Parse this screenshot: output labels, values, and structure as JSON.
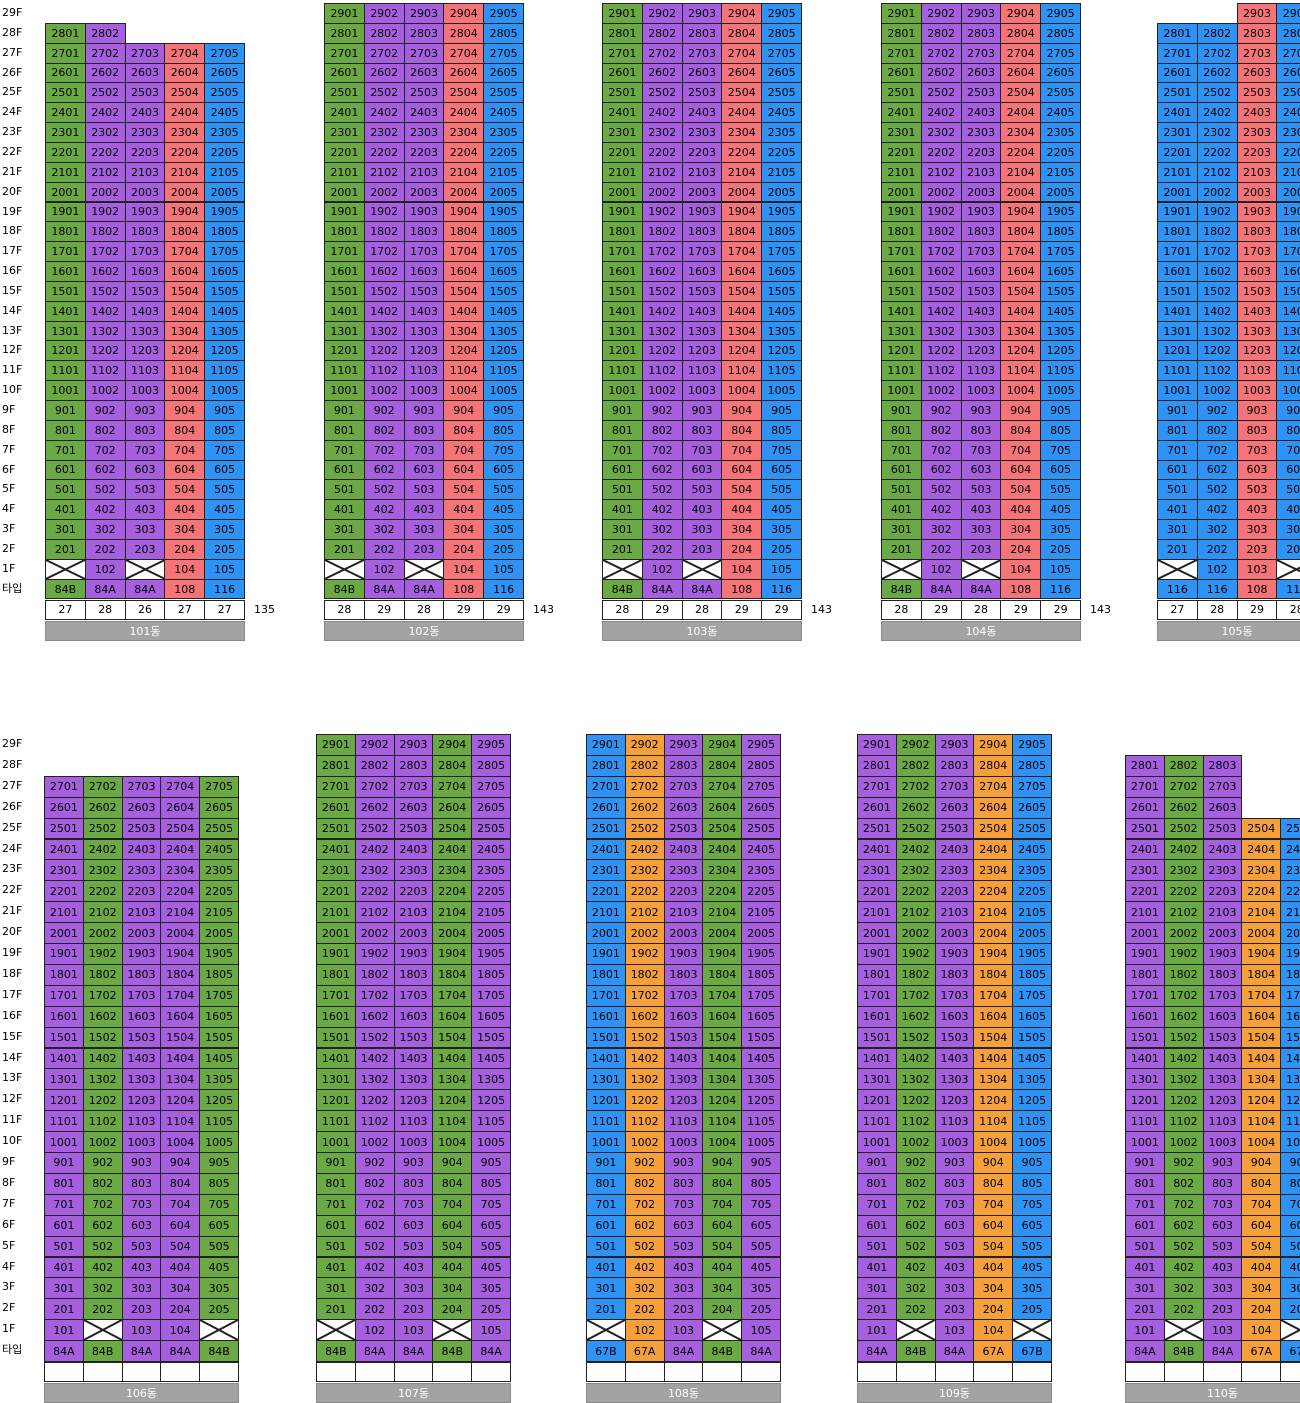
{
  "colors": {
    "G": "#6aa943",
    "P": "#a65fde",
    "R": "#f47478",
    "B": "#2f92f5",
    "O": "#f5a03a",
    "W": "#ffffff"
  },
  "type_label": "타입",
  "rows": [
    {
      "floor_labels": [
        "29F",
        "28F",
        "27F",
        "26F",
        "25F",
        "24F",
        "23F",
        "22F",
        "21F",
        "20F",
        "19F",
        "18F",
        "17F",
        "16F",
        "15F",
        "14F",
        "13F",
        "12F",
        "11F",
        "10F",
        "9F",
        "8F",
        "7F",
        "6F",
        "5F",
        "4F",
        "3F",
        "2F",
        "1F"
      ],
      "buildings": [
        {
          "name": "101동",
          "top_floor": 28,
          "line_colors": [
            "G",
            "P",
            "P",
            "R",
            "B"
          ],
          "line_tops": [
            28,
            28,
            27,
            27,
            27
          ],
          "first_floor": [
            "X",
            "102",
            "X",
            "104",
            "105"
          ],
          "types": [
            "84B",
            "84A",
            "84A",
            "108",
            "116"
          ],
          "counts": [
            "27",
            "28",
            "26",
            "27",
            "27"
          ],
          "total": "135"
        },
        {
          "name": "102동",
          "top_floor": 29,
          "line_colors": [
            "G",
            "P",
            "P",
            "R",
            "B"
          ],
          "line_tops": [
            29,
            29,
            29,
            29,
            29
          ],
          "first_floor": [
            "X",
            "102",
            "X",
            "104",
            "105"
          ],
          "types": [
            "84B",
            "84A",
            "84A",
            "108",
            "116"
          ],
          "counts": [
            "28",
            "29",
            "28",
            "29",
            "29"
          ],
          "total": "143"
        },
        {
          "name": "103동",
          "top_floor": 29,
          "line_colors": [
            "G",
            "P",
            "P",
            "R",
            "B"
          ],
          "line_tops": [
            29,
            29,
            29,
            29,
            29
          ],
          "first_floor": [
            "X",
            "102",
            "X",
            "104",
            "105"
          ],
          "types": [
            "84B",
            "84A",
            "84A",
            "108",
            "116"
          ],
          "counts": [
            "28",
            "29",
            "28",
            "29",
            "29"
          ],
          "total": "143"
        },
        {
          "name": "104동",
          "top_floor": 29,
          "line_colors": [
            "G",
            "P",
            "P",
            "R",
            "B"
          ],
          "line_tops": [
            29,
            29,
            29,
            29,
            29
          ],
          "first_floor": [
            "X",
            "102",
            "X",
            "104",
            "105"
          ],
          "types": [
            "84B",
            "84A",
            "84A",
            "108",
            "116"
          ],
          "counts": [
            "28",
            "29",
            "28",
            "29",
            "29"
          ],
          "total": "143"
        },
        {
          "name": "105동",
          "top_floor": 29,
          "line_colors": [
            "B",
            "B",
            "R",
            "B"
          ],
          "line_tops": [
            28,
            28,
            29,
            29
          ],
          "first_floor": [
            "X",
            "102",
            "103",
            "X"
          ],
          "types": [
            "116",
            "116",
            "108",
            "116"
          ],
          "counts": [
            "27",
            "28",
            "29",
            "28"
          ],
          "total": ""
        }
      ]
    },
    {
      "floor_labels": [
        "29F",
        "28F",
        "27F",
        "26F",
        "25F",
        "24F",
        "23F",
        "22F",
        "21F",
        "20F",
        "19F",
        "18F",
        "17F",
        "16F",
        "15F",
        "14F",
        "13F",
        "12F",
        "11F",
        "10F",
        "9F",
        "8F",
        "7F",
        "6F",
        "5F",
        "4F",
        "3F",
        "2F",
        "1F"
      ],
      "buildings": [
        {
          "name": "106동",
          "top_floor": 27,
          "line_colors": [
            "P",
            "G",
            "P",
            "P",
            "G"
          ],
          "line_tops": [
            27,
            27,
            27,
            27,
            27
          ],
          "first_floor": [
            "101",
            "X",
            "103",
            "104",
            "X"
          ],
          "types": [
            "84A",
            "84B",
            "84A",
            "84A",
            "84B"
          ],
          "counts": [
            "",
            "",
            "",
            "",
            ""
          ],
          "total": ""
        },
        {
          "name": "107동",
          "top_floor": 29,
          "line_colors": [
            "G",
            "P",
            "P",
            "G",
            "P"
          ],
          "line_tops": [
            29,
            29,
            29,
            29,
            29
          ],
          "first_floor": [
            "X",
            "102",
            "103",
            "X",
            "105"
          ],
          "types": [
            "84B",
            "84A",
            "84A",
            "84B",
            "84A"
          ],
          "counts": [
            "",
            "",
            "",
            "",
            ""
          ],
          "total": ""
        },
        {
          "name": "108동",
          "top_floor": 29,
          "line_colors": [
            "B",
            "O",
            "P",
            "G",
            "P"
          ],
          "line_tops": [
            29,
            29,
            29,
            29,
            29
          ],
          "first_floor": [
            "X",
            "102",
            "103",
            "X",
            "105"
          ],
          "types": [
            "67B",
            "67A",
            "84A",
            "84B",
            "84A"
          ],
          "counts": [
            "",
            "",
            "",
            "",
            ""
          ],
          "total": ""
        },
        {
          "name": "109동",
          "top_floor": 29,
          "line_colors": [
            "P",
            "G",
            "P",
            "O",
            "B"
          ],
          "line_tops": [
            29,
            29,
            29,
            29,
            29
          ],
          "first_floor": [
            "101",
            "X",
            "103",
            "104",
            "X"
          ],
          "types": [
            "84A",
            "84B",
            "84A",
            "67A",
            "67B"
          ],
          "counts": [
            "",
            "",
            "",
            "",
            ""
          ],
          "total": ""
        },
        {
          "name": "110동",
          "top_floor": 28,
          "line_colors": [
            "P",
            "G",
            "P",
            "O",
            "B"
          ],
          "line_tops": [
            28,
            28,
            28,
            25,
            25
          ],
          "first_floor": [
            "101",
            "X",
            "103",
            "104",
            "X"
          ],
          "types": [
            "84A",
            "84B",
            "84A",
            "67A",
            "67B"
          ],
          "counts": [
            "",
            "",
            "",
            "",
            ""
          ],
          "total": ""
        }
      ]
    }
  ]
}
